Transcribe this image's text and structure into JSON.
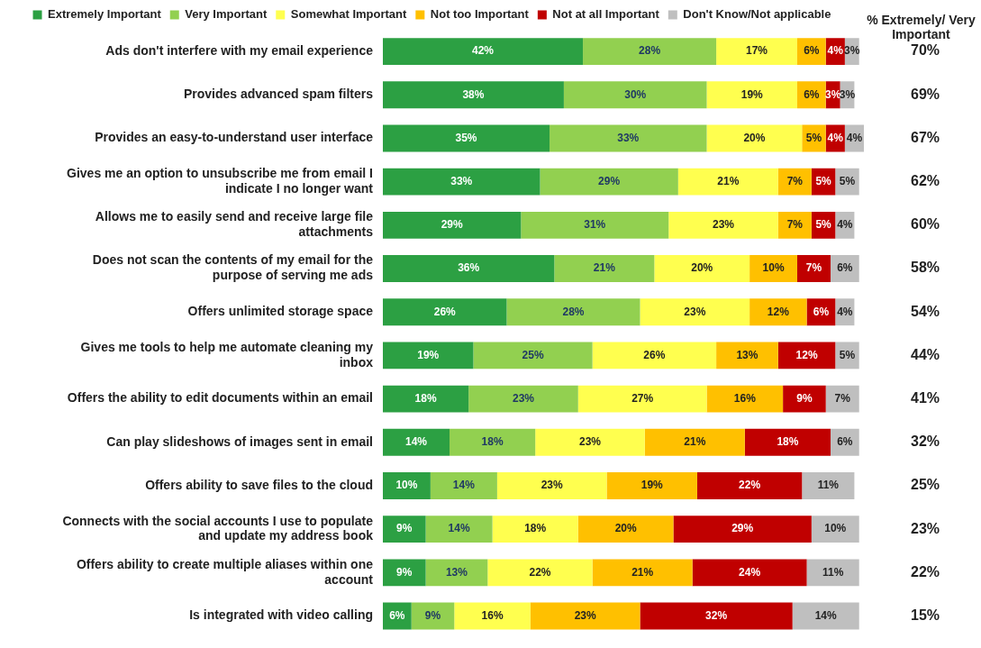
{
  "chart_data": {
    "type": "bar",
    "orientation": "horizontal",
    "stacked": true,
    "legend": "top",
    "tick_labels": "y",
    "xlim": [
      0,
      101
    ],
    "categories": [
      "Ads don't interfere with my email experience",
      "Provides advanced spam filters",
      "Provides an easy-to-understand user interface",
      "Gives me an option to unsubscribe me from email I indicate I no longer want",
      "Allows me to easily send and receive large file attachments",
      "Does not scan the contents of my email for the purpose of serving me ads",
      "Offers unlimited storage space",
      "Gives me tools to help me automate cleaning my inbox",
      "Offers the ability to edit documents within an email",
      "Can play slideshows of images sent in email",
      "Offers ability to save files to the cloud",
      "Connects with the social accounts I use to populate and update my address book",
      "Offers ability to create multiple aliases within one account",
      "Is integrated with video calling"
    ],
    "series": [
      {
        "name": "Extremely Important",
        "color": "#2ca043",
        "values": [
          42,
          38,
          35,
          33,
          29,
          36,
          26,
          19,
          18,
          14,
          10,
          9,
          9,
          6
        ],
        "value_labels": [
          "42%",
          "38%",
          "35%",
          "33%",
          "29%",
          "36%",
          "26%",
          "19%",
          "18%",
          "14%",
          "10%",
          "9%",
          "9%",
          "6%"
        ]
      },
      {
        "name": "Very Important",
        "color": "#92d050",
        "values": [
          28,
          30,
          33,
          29,
          31,
          21,
          28,
          25,
          23,
          18,
          14,
          14,
          13,
          9
        ],
        "value_labels": [
          "28%",
          "30%",
          "33%",
          "29%",
          "31%",
          "21%",
          "28%",
          "25%",
          "23%",
          "18%",
          "14%",
          "14%",
          "13%",
          "9%"
        ]
      },
      {
        "name": "Somewhat Important",
        "color": "#ffff4f",
        "values": [
          17,
          19,
          20,
          21,
          23,
          20,
          23,
          26,
          27,
          23,
          23,
          18,
          22,
          16
        ],
        "value_labels": [
          "17%",
          "19%",
          "20%",
          "21%",
          "23%",
          "20%",
          "23%",
          "26%",
          "27%",
          "23%",
          "23%",
          "18%",
          "22%",
          "16%"
        ]
      },
      {
        "name": "Not too Important",
        "color": "#ffc000",
        "values": [
          6,
          6,
          5,
          7,
          7,
          10,
          12,
          13,
          16,
          21,
          19,
          20,
          21,
          23
        ],
        "value_labels": [
          "6%",
          "6%",
          "5%",
          "7%",
          "7%",
          "10%",
          "12%",
          "13%",
          "16%",
          "21%",
          "19%",
          "20%",
          "21%",
          "23%"
        ]
      },
      {
        "name": "Not at all Important",
        "color": "#c00000",
        "values": [
          4,
          3,
          4,
          5,
          5,
          7,
          6,
          12,
          9,
          18,
          22,
          29,
          24,
          32
        ],
        "value_labels": [
          "4%",
          "3%",
          "4%",
          "5%",
          "5%",
          "7%",
          "6%",
          "12%",
          "9%",
          "18%",
          "22%",
          "29%",
          "24%",
          "32%"
        ]
      },
      {
        "name": "Don't Know/Not applicable",
        "color": "#bfbfbf",
        "values": [
          3,
          3,
          4,
          5,
          4,
          6,
          4,
          5,
          7,
          6,
          11,
          10,
          11,
          14
        ],
        "value_labels": [
          "3%",
          "3%",
          "4%",
          "5%",
          "4%",
          "6%",
          "4%",
          "5%",
          "7%",
          "6%",
          "11%",
          "10%",
          "11%",
          "14%"
        ]
      }
    ],
    "annotations": [
      "% Extremely/ Very Important",
      "70%",
      "69%",
      "67%",
      "62%",
      "60%",
      "58%",
      "54%",
      "44%",
      "41%",
      "32%",
      "25%",
      "23%",
      "22%",
      "15%"
    ]
  }
}
